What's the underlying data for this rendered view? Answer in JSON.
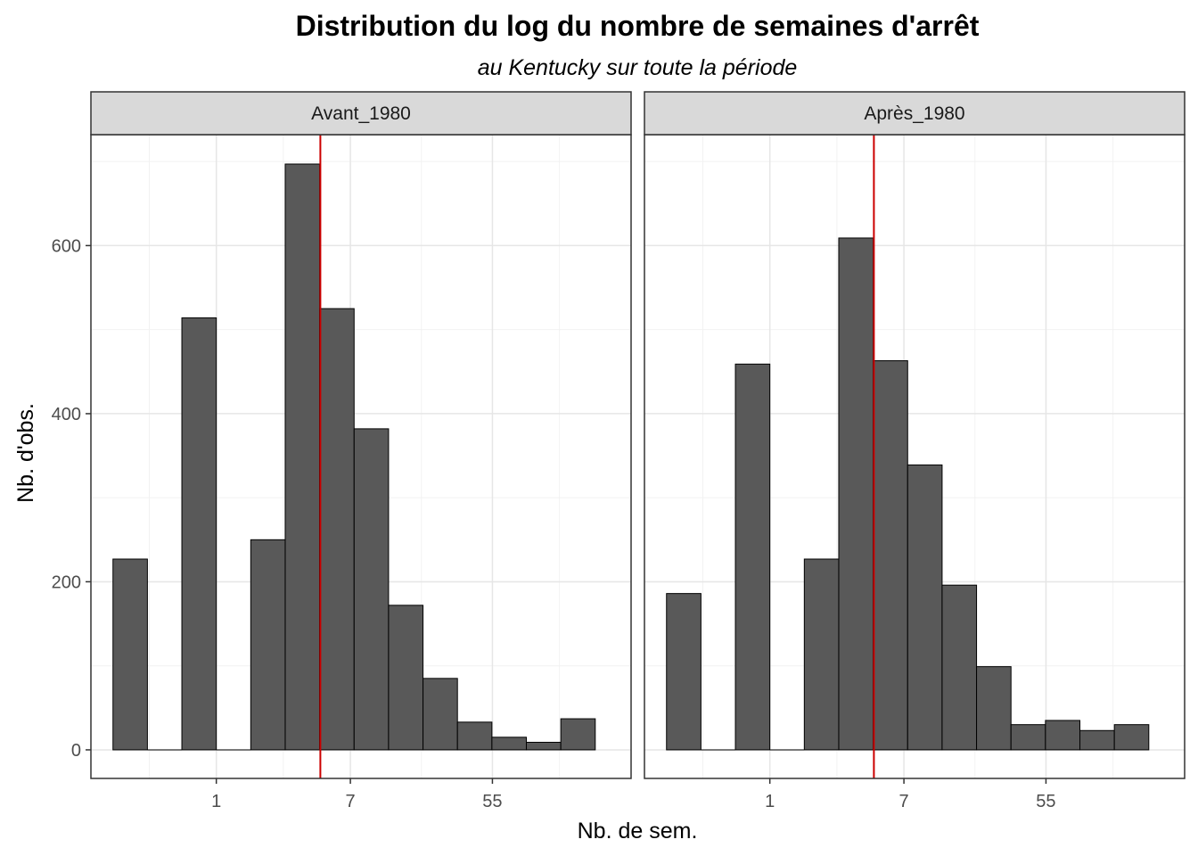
{
  "chart_data": {
    "type": "bar",
    "title": "Distribution du log du nombre de semaines d'arrêt",
    "subtitle": "au Kentucky sur toute la période",
    "xlabel": "Nb. de sem.",
    "ylabel": "Nb. d'obs.",
    "x_scale": "log",
    "x_ticks": [
      1,
      7,
      55
    ],
    "y_ticks": [
      0,
      200,
      400,
      600
    ],
    "ylim": [
      -34,
      732
    ],
    "bin_log_edges": [
      -1.5,
      -1.0,
      -0.5,
      0.0,
      0.5,
      1.0,
      1.5,
      2.0,
      2.5,
      3.0,
      3.5,
      4.0,
      4.5,
      5.0,
      5.5
    ],
    "xlim_log": [
      -1.82,
      6.02
    ],
    "grid": true,
    "bar_color": "#595959",
    "vline_color": "#cc0000",
    "panels": [
      {
        "label": "Avant_1980",
        "values": [
          227,
          0,
          514,
          0,
          250,
          697,
          525,
          382,
          172,
          85,
          33,
          15,
          9,
          37
        ],
        "vline_log": 1.51
      },
      {
        "label": "Après_1980",
        "values": [
          186,
          0,
          459,
          0,
          227,
          609,
          463,
          339,
          196,
          99,
          30,
          35,
          23,
          30
        ],
        "vline_log": 1.51
      }
    ]
  }
}
